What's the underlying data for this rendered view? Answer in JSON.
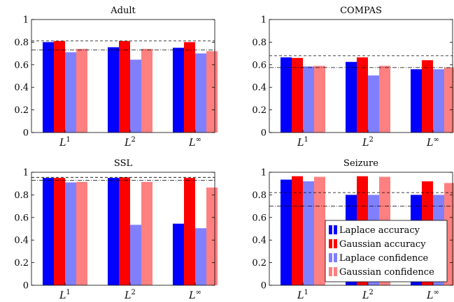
{
  "chart_data": [
    {
      "type": "bar",
      "title": "Adult",
      "categories": [
        {
          "base": "L",
          "sup": "1"
        },
        {
          "base": "L",
          "sup": "2"
        },
        {
          "base": "L",
          "sup": "∞"
        }
      ],
      "series": [
        {
          "name": "Laplace accuracy",
          "color": "#0000ff",
          "values": [
            0.8,
            0.755,
            0.75
          ]
        },
        {
          "name": "Gaussian accuracy",
          "color": "#ff0000",
          "values": [
            0.81,
            0.81,
            0.8
          ]
        },
        {
          "name": "Laplace confidence",
          "color": "#8080ff",
          "values": [
            0.71,
            0.645,
            0.7
          ]
        },
        {
          "name": "Gaussian confidence",
          "color": "#ff8080",
          "values": [
            0.74,
            0.74,
            0.72
          ]
        }
      ],
      "reference_lines": [
        {
          "style": "dashed",
          "value": 0.81
        },
        {
          "style": "dashdot",
          "value": 0.73
        }
      ],
      "ylim": [
        0,
        1
      ],
      "yticks": [
        "0",
        "0.2",
        "0.4",
        "0.6",
        "0.8",
        "1"
      ],
      "ytick_values": [
        0,
        0.2,
        0.4,
        0.6,
        0.8,
        1
      ],
      "grid": false
    },
    {
      "type": "bar",
      "title": "COMPAS",
      "categories": [
        {
          "base": "L",
          "sup": "1"
        },
        {
          "base": "L",
          "sup": "2"
        },
        {
          "base": "L",
          "sup": "∞"
        }
      ],
      "series": [
        {
          "name": "Laplace accuracy",
          "color": "#0000ff",
          "values": [
            0.665,
            0.625,
            0.56
          ]
        },
        {
          "name": "Gaussian accuracy",
          "color": "#ff0000",
          "values": [
            0.66,
            0.665,
            0.64
          ]
        },
        {
          "name": "Laplace confidence",
          "color": "#8080ff",
          "values": [
            0.585,
            0.505,
            0.56
          ]
        },
        {
          "name": "Gaussian confidence",
          "color": "#ff8080",
          "values": [
            0.59,
            0.59,
            0.575
          ]
        }
      ],
      "reference_lines": [
        {
          "style": "dashed",
          "value": 0.68
        },
        {
          "style": "dashdot",
          "value": 0.575
        }
      ],
      "ylim": [
        0,
        1
      ],
      "yticks": [
        "0",
        "0.2",
        "0.4",
        "0.6",
        "0.8",
        "1"
      ],
      "ytick_values": [
        0,
        0.2,
        0.4,
        0.6,
        0.8,
        1
      ],
      "grid": false
    },
    {
      "type": "bar",
      "title": "SSL",
      "categories": [
        {
          "base": "L",
          "sup": "1"
        },
        {
          "base": "L",
          "sup": "2"
        },
        {
          "base": "L",
          "sup": "∞"
        }
      ],
      "series": [
        {
          "name": "Laplace accuracy",
          "color": "#0000ff",
          "values": [
            0.95,
            0.95,
            0.545
          ]
        },
        {
          "name": "Gaussian accuracy",
          "color": "#ff0000",
          "values": [
            0.95,
            0.955,
            0.95
          ]
        },
        {
          "name": "Laplace confidence",
          "color": "#8080ff",
          "values": [
            0.91,
            0.535,
            0.505
          ]
        },
        {
          "name": "Gaussian confidence",
          "color": "#ff8080",
          "values": [
            0.915,
            0.915,
            0.865
          ]
        }
      ],
      "reference_lines": [
        {
          "style": "dashed",
          "value": 0.955
        },
        {
          "style": "dashdot",
          "value": 0.93
        }
      ],
      "ylim": [
        0,
        1
      ],
      "yticks": [
        "0",
        "0.2",
        "0.4",
        "0.6",
        "0.8",
        "1"
      ],
      "ytick_values": [
        0,
        0.2,
        0.4,
        0.6,
        0.8,
        1
      ],
      "grid": false
    },
    {
      "type": "bar",
      "title": "Seizure",
      "categories": [
        {
          "base": "L",
          "sup": "1"
        },
        {
          "base": "L",
          "sup": "2"
        },
        {
          "base": "L",
          "sup": "∞"
        }
      ],
      "series": [
        {
          "name": "Laplace accuracy",
          "color": "#0000ff",
          "values": [
            0.935,
            0.8,
            0.8
          ]
        },
        {
          "name": "Gaussian accuracy",
          "color": "#ff0000",
          "values": [
            0.965,
            0.965,
            0.92
          ]
        },
        {
          "name": "Laplace confidence",
          "color": "#8080ff",
          "values": [
            0.92,
            0.8,
            0.8
          ]
        },
        {
          "name": "Gaussian confidence",
          "color": "#ff8080",
          "values": [
            0.96,
            0.96,
            0.905
          ]
        }
      ],
      "reference_lines": [
        {
          "style": "dashed",
          "value": 0.82
        },
        {
          "style": "dashdot",
          "value": 0.7
        }
      ],
      "ylim": [
        0,
        1
      ],
      "yticks": [
        "0",
        "0.2",
        "0.4",
        "0.6",
        "0.8",
        "1"
      ],
      "ytick_values": [
        0,
        0.2,
        0.4,
        0.6,
        0.8,
        1
      ],
      "grid": false,
      "legend": {
        "placement": "bottom-right",
        "entries": [
          {
            "label": "Laplace accuracy",
            "color": "#0000ff"
          },
          {
            "label": "Gaussian accuracy",
            "color": "#ff0000"
          },
          {
            "label": "Laplace confidence",
            "color": "#8080ff"
          },
          {
            "label": "Gaussian confidence",
            "color": "#ff8080"
          }
        ]
      }
    }
  ]
}
